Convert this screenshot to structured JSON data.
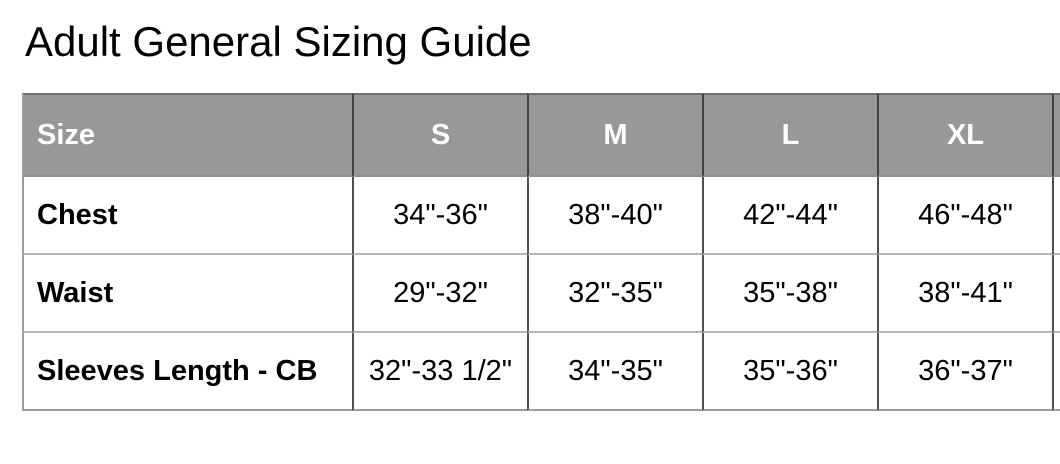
{
  "page": {
    "title": "Adult General Sizing Guide"
  },
  "sizing_table": {
    "columns": [
      "Size",
      "S",
      "M",
      "L",
      "XL"
    ],
    "rows": [
      {
        "label": "Chest",
        "values": [
          "34\"-36\"",
          "38\"-40\"",
          "42\"-44\"",
          "46\"-48\""
        ]
      },
      {
        "label": "Waist",
        "values": [
          "29\"-32\"",
          "32\"-35\"",
          "35\"-38\"",
          "38\"-41\""
        ]
      },
      {
        "label": "Sleeves Length - CB",
        "values": [
          "32\"-33 1/2\"",
          "34\"-35\"",
          "35\"-36\"",
          "36\"-37\""
        ]
      }
    ],
    "note_right_column_cut_off": true
  },
  "colors": {
    "header_bg": "#97989a",
    "header_text": "#ffffff",
    "body_text": "#000000",
    "vertical_border": "#4a4a4a",
    "horizontal_border": "#b5b5b5"
  }
}
